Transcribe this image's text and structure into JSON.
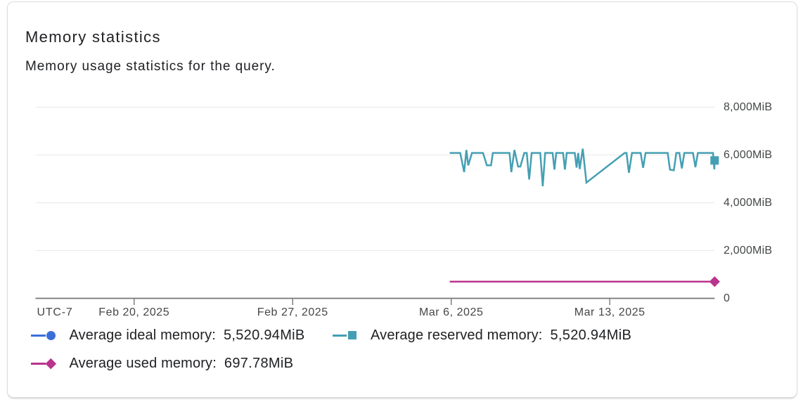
{
  "card": {
    "title": "Memory statistics",
    "subtitle": "Memory usage statistics for the query."
  },
  "colors": {
    "ideal": "#3B6FD8",
    "reserved": "#459FB3",
    "used": "#B9348C",
    "gridline": "#e8e8e8",
    "axis_line": "#757575",
    "tick_label": "#444746"
  },
  "chart_data": {
    "type": "line",
    "title": "Memory statistics",
    "subtitle": "Memory usage statistics for the query.",
    "x_axis": {
      "timezone_label": "UTC-7",
      "unit": "date",
      "ticks": [
        {
          "label": "Feb 20, 2025",
          "day": -14
        },
        {
          "label": "Feb 27, 2025",
          "day": -7
        },
        {
          "label": "Mar 6, 2025",
          "day": 0
        },
        {
          "label": "Mar 13, 2025",
          "day": 7
        }
      ],
      "range_days": [
        -18.36,
        11.63
      ],
      "note": "day values are days relative to Mar 6, 2025"
    },
    "y_axis": {
      "unit": "MiB",
      "side": "right",
      "ticks": [
        {
          "label": "0",
          "value": 0
        },
        {
          "label": "2,000MiB",
          "value": 2000
        },
        {
          "label": "4,000MiB",
          "value": 4000
        },
        {
          "label": "6,000MiB",
          "value": 6000
        },
        {
          "label": "8,000MiB",
          "value": 8000
        }
      ],
      "range": [
        0,
        8000
      ],
      "grid": true
    },
    "legend_position": "bottom",
    "series": [
      {
        "name": "Average ideal memory",
        "average": "5,520.94MiB",
        "color": "#3B6FD8",
        "marker": "circle",
        "points": [],
        "note": "line coincides with Average reserved memory and is hidden beneath it"
      },
      {
        "name": "Average reserved memory",
        "average": "5,520.94MiB",
        "color": "#459FB3",
        "marker": "square",
        "points": [
          [
            -0.065,
            6085
          ],
          [
            0.397,
            6085
          ],
          [
            0.571,
            5282
          ],
          [
            0.671,
            6209
          ],
          [
            0.751,
            5565
          ],
          [
            0.916,
            6085
          ],
          [
            1.403,
            6085
          ],
          [
            1.574,
            5565
          ],
          [
            1.757,
            5565
          ],
          [
            1.838,
            6085
          ],
          [
            2.574,
            6085
          ],
          [
            2.654,
            5282
          ],
          [
            2.791,
            6209
          ],
          [
            2.952,
            5515
          ],
          [
            3.052,
            5515
          ],
          [
            3.226,
            6085
          ],
          [
            3.334,
            6085
          ],
          [
            3.443,
            4974
          ],
          [
            3.552,
            6085
          ],
          [
            3.93,
            6085
          ],
          [
            4.042,
            4691
          ],
          [
            4.148,
            6085
          ],
          [
            4.204,
            6085
          ],
          [
            4.477,
            6085
          ],
          [
            4.558,
            5385
          ],
          [
            4.638,
            6085
          ],
          [
            4.939,
            6085
          ],
          [
            5.02,
            5385
          ],
          [
            5.101,
            6085
          ],
          [
            5.455,
            6085
          ],
          [
            5.536,
            5471
          ],
          [
            5.607,
            6085
          ],
          [
            5.672,
            5412
          ],
          [
            5.809,
            6262
          ],
          [
            5.97,
            4844
          ],
          [
            7.656,
            6085
          ],
          [
            7.74,
            6085
          ],
          [
            7.845,
            5256
          ],
          [
            7.982,
            6085
          ],
          [
            8.364,
            6085
          ],
          [
            8.473,
            5462
          ],
          [
            8.581,
            6085
          ],
          [
            9.559,
            6085
          ],
          [
            9.658,
            5385
          ],
          [
            9.829,
            5359
          ],
          [
            9.938,
            6085
          ],
          [
            10.075,
            6085
          ],
          [
            10.183,
            5435
          ],
          [
            10.292,
            6085
          ],
          [
            10.674,
            6085
          ],
          [
            10.782,
            5488
          ],
          [
            10.891,
            6085
          ],
          [
            11.465,
            6085
          ],
          [
            11.56,
            6085
          ],
          [
            11.617,
            5397
          ],
          [
            11.63,
            5771
          ]
        ]
      },
      {
        "name": "Average used memory",
        "average": "697.78MiB",
        "color": "#B9348C",
        "marker": "diamond",
        "points": [
          [
            -0.065,
            697.78
          ],
          [
            11.63,
            697.78
          ]
        ]
      }
    ],
    "legend": [
      {
        "label": "Average ideal memory:",
        "value": "5,520.94MiB",
        "marker": "circle",
        "color": "#3B6FD8"
      },
      {
        "label": "Average reserved memory:",
        "value": "5,520.94MiB",
        "marker": "square",
        "color": "#459FB3"
      },
      {
        "label": "Average used memory:",
        "value": "697.78MiB",
        "marker": "diamond",
        "color": "#B9348C"
      }
    ]
  }
}
